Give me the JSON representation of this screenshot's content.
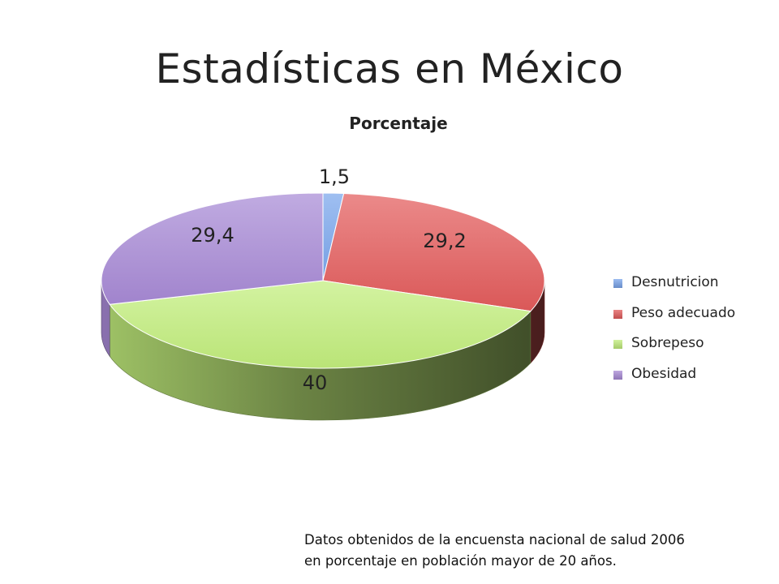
{
  "slide": {
    "title": "Estadísticas en México"
  },
  "chart_data": {
    "type": "pie",
    "title": "Porcentaje",
    "three_d": true,
    "legend_position": "right",
    "categories": [
      "Desnutricion",
      "Peso adecuado",
      "Sobrepeso",
      "Obesidad"
    ],
    "values": [
      1.5,
      29.2,
      40,
      29.4
    ],
    "data_labels": [
      "1,5",
      "29,2",
      "40",
      "29,4"
    ],
    "colors": [
      "#7aa6ec",
      "#e35c5c",
      "#c2ee7c",
      "#a88ad6"
    ]
  },
  "footnote": {
    "line1": "Datos obtenidos de la encuensta nacional de salud 2006",
    "line2": "en porcentaje en población mayor de 20 años."
  }
}
